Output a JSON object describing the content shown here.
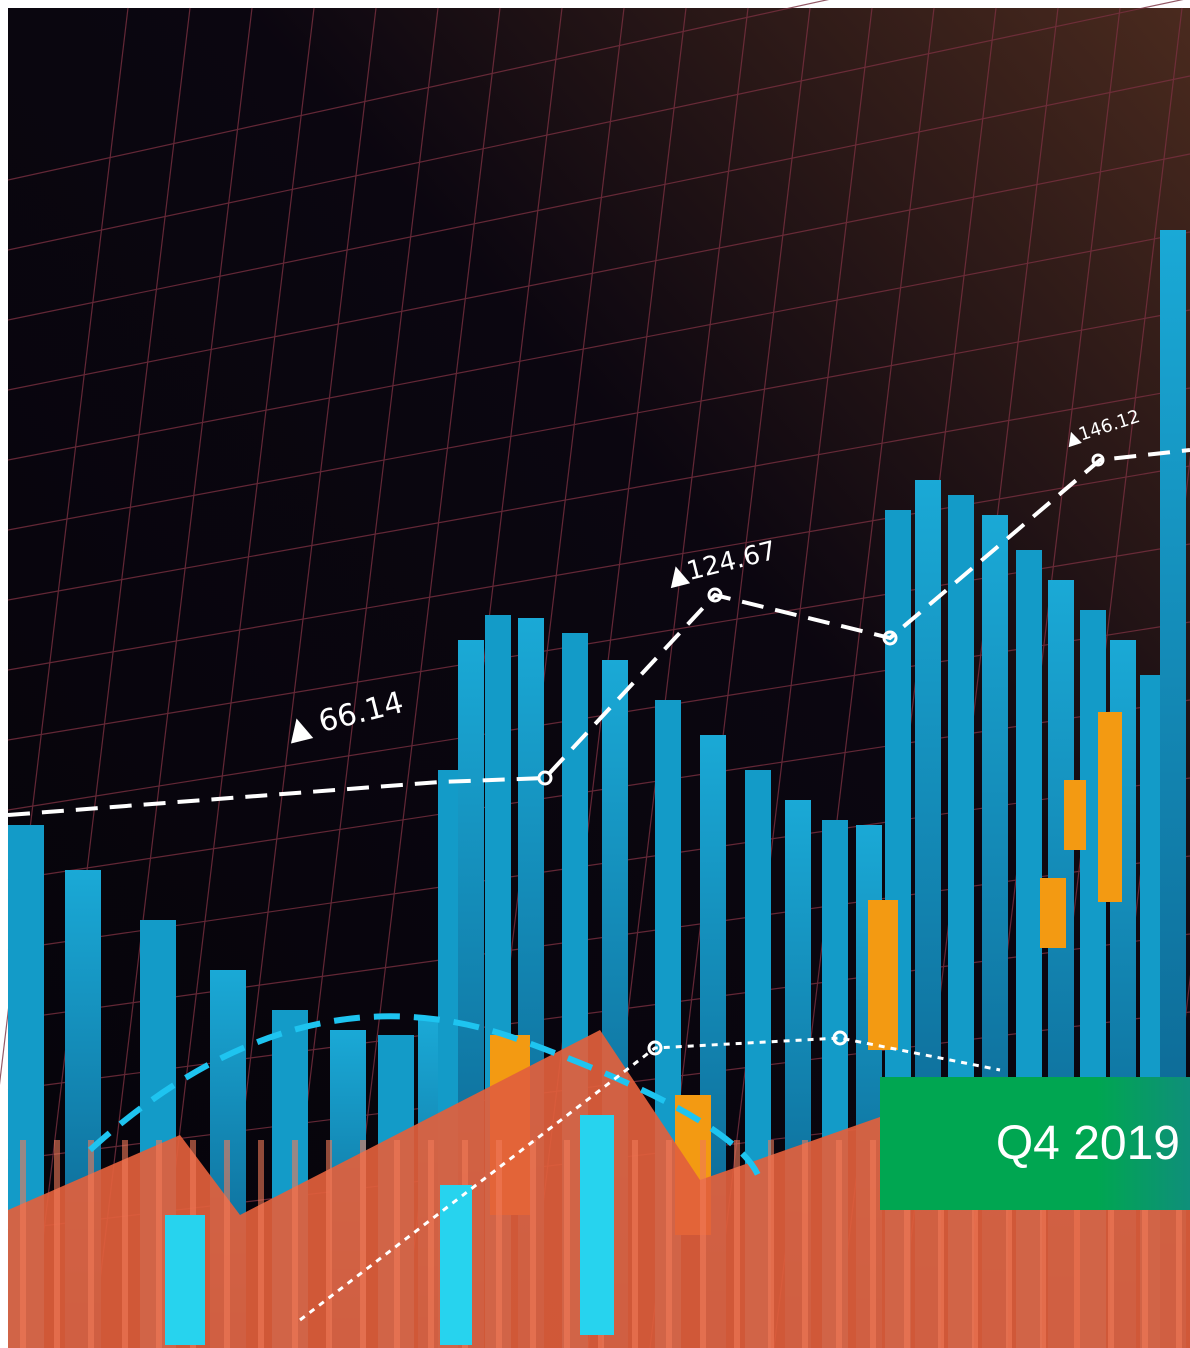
{
  "image": {
    "annotations": [
      "▲ 66.14",
      "▲124.67",
      "▲146.12"
    ]
  },
  "badge": {
    "label": "Q4 2019"
  }
}
